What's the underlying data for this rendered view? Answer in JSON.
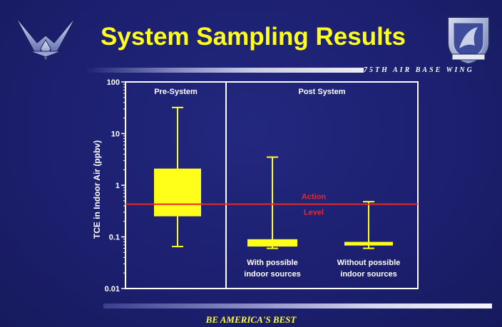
{
  "slide": {
    "title": "System Sampling Results",
    "org_text": "75TH AIR BASE WING",
    "footer": "BE AMERICA'S BEST",
    "title_color": "#ffff1a",
    "background_color": "#1c1f6e",
    "logo_left_icon": "air-force-wings-logo",
    "logo_right_icon": "75th-air-base-wing-shield"
  },
  "chart_data": {
    "type": "box",
    "title": "",
    "xlabel": "",
    "ylabel": "TCE in Indoor Air (ppbv)",
    "yscale": "log",
    "ylim": [
      0.01,
      100
    ],
    "yticks": [
      0.01,
      0.1,
      1,
      10,
      100
    ],
    "ytick_labels": [
      "0.01",
      "0.1",
      "1",
      "10",
      "100"
    ],
    "panels": [
      {
        "label": "Pre-System"
      },
      {
        "label": "Post System"
      }
    ],
    "boxes": [
      {
        "label": "",
        "min": 0.065,
        "q1": 0.25,
        "q3": 2.1,
        "max": 32
      },
      {
        "label": "With possible indoor sources",
        "min": 0.06,
        "q1": 0.065,
        "q3": 0.09,
        "max": 3.5
      },
      {
        "label": "Without possible indoor sources",
        "min": 0.06,
        "q1": 0.068,
        "q3": 0.08,
        "max": 0.48
      }
    ],
    "reference_line": {
      "label": "Action Level",
      "value": 0.43,
      "color": "#e8272c"
    },
    "box_color": "#ffff1a",
    "grid": false
  }
}
